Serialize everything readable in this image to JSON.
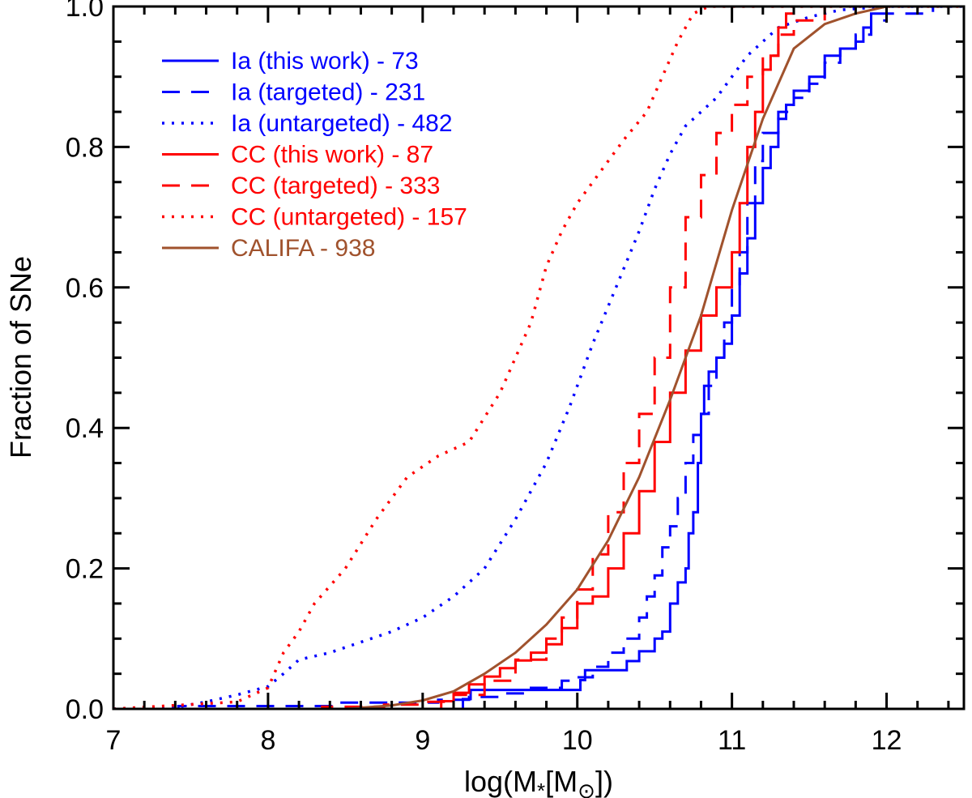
{
  "chart_data": {
    "type": "line",
    "title": "",
    "xlabel": "log(M",
    "xlabel_sub": "*",
    "xlabel_mid": "[M",
    "xlabel_sun": "⊙",
    "xlabel_end": "])",
    "ylabel": "Fraction of SNe",
    "xlim": [
      7,
      12.5
    ],
    "ylim": [
      0,
      1
    ],
    "xticks": [
      "7",
      "8",
      "9",
      "10",
      "11",
      "12"
    ],
    "yticks": [
      "0.0",
      "0.2",
      "0.4",
      "0.6",
      "0.8",
      "1.0"
    ],
    "grid": false,
    "legend_position": "top-left",
    "series": [
      {
        "name": "Ia (this work) - 73",
        "color": "#0000ff",
        "dash": "solid",
        "step": true,
        "points": [
          [
            7.0,
            0.0
          ],
          [
            9.25,
            0.0
          ],
          [
            9.26,
            0.014
          ],
          [
            9.3,
            0.014
          ],
          [
            9.31,
            0.027
          ],
          [
            10.0,
            0.027
          ],
          [
            10.02,
            0.041
          ],
          [
            10.05,
            0.055
          ],
          [
            10.3,
            0.055
          ],
          [
            10.32,
            0.068
          ],
          [
            10.4,
            0.082
          ],
          [
            10.5,
            0.1
          ],
          [
            10.55,
            0.11
          ],
          [
            10.6,
            0.15
          ],
          [
            10.65,
            0.18
          ],
          [
            10.7,
            0.2
          ],
          [
            10.72,
            0.25
          ],
          [
            10.75,
            0.28
          ],
          [
            10.78,
            0.35
          ],
          [
            10.8,
            0.42
          ],
          [
            10.82,
            0.46
          ],
          [
            10.85,
            0.48
          ],
          [
            10.9,
            0.5
          ],
          [
            10.95,
            0.52
          ],
          [
            11.0,
            0.56
          ],
          [
            11.05,
            0.62
          ],
          [
            11.1,
            0.67
          ],
          [
            11.15,
            0.72
          ],
          [
            11.2,
            0.77
          ],
          [
            11.25,
            0.8
          ],
          [
            11.3,
            0.84
          ],
          [
            11.35,
            0.86
          ],
          [
            11.4,
            0.88
          ],
          [
            11.5,
            0.9
          ],
          [
            11.6,
            0.93
          ],
          [
            11.7,
            0.94
          ],
          [
            11.8,
            0.95
          ],
          [
            11.85,
            0.97
          ],
          [
            11.9,
            0.99
          ],
          [
            12.0,
            1.0
          ],
          [
            12.5,
            1.0
          ]
        ]
      },
      {
        "name": "Ia (targeted) - 231",
        "color": "#0000ff",
        "dash": "long",
        "step": true,
        "points": [
          [
            7.0,
            0.0
          ],
          [
            7.4,
            0.0
          ],
          [
            7.42,
            0.004
          ],
          [
            8.4,
            0.004
          ],
          [
            8.45,
            0.009
          ],
          [
            9.0,
            0.009
          ],
          [
            9.1,
            0.013
          ],
          [
            9.3,
            0.017
          ],
          [
            9.5,
            0.022
          ],
          [
            9.7,
            0.03
          ],
          [
            9.9,
            0.04
          ],
          [
            10.0,
            0.045
          ],
          [
            10.1,
            0.06
          ],
          [
            10.2,
            0.08
          ],
          [
            10.3,
            0.1
          ],
          [
            10.4,
            0.13
          ],
          [
            10.45,
            0.16
          ],
          [
            10.5,
            0.19
          ],
          [
            10.55,
            0.23
          ],
          [
            10.6,
            0.26
          ],
          [
            10.65,
            0.3
          ],
          [
            10.7,
            0.35
          ],
          [
            10.75,
            0.39
          ],
          [
            10.8,
            0.42
          ],
          [
            10.85,
            0.46
          ],
          [
            10.9,
            0.5
          ],
          [
            10.95,
            0.55
          ],
          [
            11.0,
            0.6
          ],
          [
            11.05,
            0.65
          ],
          [
            11.1,
            0.72
          ],
          [
            11.15,
            0.78
          ],
          [
            11.2,
            0.82
          ],
          [
            11.3,
            0.85
          ],
          [
            11.4,
            0.87
          ],
          [
            11.5,
            0.89
          ],
          [
            11.6,
            0.92
          ],
          [
            11.7,
            0.94
          ],
          [
            11.8,
            0.96
          ],
          [
            11.9,
            0.98
          ],
          [
            12.0,
            0.99
          ],
          [
            12.3,
            1.0
          ],
          [
            12.5,
            1.0
          ]
        ]
      },
      {
        "name": "Ia (untargeted) - 482",
        "color": "#0000ff",
        "dash": "dotted",
        "step": false,
        "points": [
          [
            7.0,
            0.0
          ],
          [
            7.4,
            0.002
          ],
          [
            7.6,
            0.01
          ],
          [
            7.8,
            0.02
          ],
          [
            8.0,
            0.032
          ],
          [
            8.1,
            0.05
          ],
          [
            8.2,
            0.07
          ],
          [
            8.4,
            0.08
          ],
          [
            8.6,
            0.095
          ],
          [
            8.8,
            0.11
          ],
          [
            9.0,
            0.13
          ],
          [
            9.2,
            0.16
          ],
          [
            9.4,
            0.2
          ],
          [
            9.6,
            0.27
          ],
          [
            9.8,
            0.35
          ],
          [
            9.95,
            0.43
          ],
          [
            10.1,
            0.52
          ],
          [
            10.25,
            0.6
          ],
          [
            10.4,
            0.68
          ],
          [
            10.5,
            0.74
          ],
          [
            10.6,
            0.79
          ],
          [
            10.7,
            0.83
          ],
          [
            10.8,
            0.85
          ],
          [
            10.9,
            0.87
          ],
          [
            11.0,
            0.9
          ],
          [
            11.1,
            0.93
          ],
          [
            11.2,
            0.95
          ],
          [
            11.3,
            0.97
          ],
          [
            11.5,
            0.985
          ],
          [
            11.7,
            0.995
          ],
          [
            12.0,
            1.0
          ],
          [
            12.5,
            1.0
          ]
        ]
      },
      {
        "name": "CC (this work) - 87",
        "color": "#ff0000",
        "dash": "solid",
        "step": true,
        "points": [
          [
            7.0,
            0.0
          ],
          [
            9.1,
            0.0
          ],
          [
            9.12,
            0.011
          ],
          [
            9.2,
            0.023
          ],
          [
            9.3,
            0.035
          ],
          [
            9.4,
            0.046
          ],
          [
            9.5,
            0.058
          ],
          [
            9.6,
            0.069
          ],
          [
            9.7,
            0.08
          ],
          [
            9.8,
            0.092
          ],
          [
            9.9,
            0.115
          ],
          [
            10.0,
            0.15
          ],
          [
            10.1,
            0.16
          ],
          [
            10.2,
            0.2
          ],
          [
            10.3,
            0.25
          ],
          [
            10.4,
            0.31
          ],
          [
            10.5,
            0.38
          ],
          [
            10.6,
            0.45
          ],
          [
            10.7,
            0.51
          ],
          [
            10.8,
            0.56
          ],
          [
            10.9,
            0.6
          ],
          [
            11.0,
            0.65
          ],
          [
            11.05,
            0.72
          ],
          [
            11.1,
            0.8
          ],
          [
            11.15,
            0.85
          ],
          [
            11.2,
            0.91
          ],
          [
            11.25,
            0.93
          ],
          [
            11.3,
            0.97
          ],
          [
            11.35,
            0.99
          ],
          [
            11.4,
            1.0
          ],
          [
            12.5,
            1.0
          ]
        ]
      },
      {
        "name": "CC (targeted) - 333",
        "color": "#ff0000",
        "dash": "long",
        "step": true,
        "points": [
          [
            7.0,
            0.0
          ],
          [
            8.3,
            0.0
          ],
          [
            8.35,
            0.003
          ],
          [
            8.7,
            0.003
          ],
          [
            8.75,
            0.006
          ],
          [
            9.0,
            0.01
          ],
          [
            9.2,
            0.02
          ],
          [
            9.4,
            0.04
          ],
          [
            9.6,
            0.07
          ],
          [
            9.8,
            0.1
          ],
          [
            9.9,
            0.13
          ],
          [
            10.0,
            0.17
          ],
          [
            10.1,
            0.22
          ],
          [
            10.2,
            0.28
          ],
          [
            10.3,
            0.35
          ],
          [
            10.4,
            0.42
          ],
          [
            10.5,
            0.5
          ],
          [
            10.6,
            0.6
          ],
          [
            10.7,
            0.7
          ],
          [
            10.8,
            0.76
          ],
          [
            10.9,
            0.82
          ],
          [
            11.0,
            0.86
          ],
          [
            11.1,
            0.9
          ],
          [
            11.2,
            0.93
          ],
          [
            11.3,
            0.96
          ],
          [
            11.4,
            0.98
          ],
          [
            11.6,
            1.0
          ],
          [
            12.5,
            1.0
          ]
        ]
      },
      {
        "name": "CC (untargeted) - 157",
        "color": "#ff0000",
        "dash": "dotted",
        "step": false,
        "points": [
          [
            7.0,
            0.0
          ],
          [
            7.8,
            0.01
          ],
          [
            8.0,
            0.03
          ],
          [
            8.1,
            0.08
          ],
          [
            8.2,
            0.11
          ],
          [
            8.3,
            0.15
          ],
          [
            8.5,
            0.2
          ],
          [
            8.7,
            0.27
          ],
          [
            8.9,
            0.33
          ],
          [
            9.1,
            0.36
          ],
          [
            9.3,
            0.38
          ],
          [
            9.5,
            0.45
          ],
          [
            9.7,
            0.55
          ],
          [
            9.8,
            0.63
          ],
          [
            9.9,
            0.68
          ],
          [
            10.0,
            0.72
          ],
          [
            10.2,
            0.78
          ],
          [
            10.3,
            0.81
          ],
          [
            10.45,
            0.85
          ],
          [
            10.55,
            0.9
          ],
          [
            10.65,
            0.95
          ],
          [
            10.75,
            0.99
          ],
          [
            10.85,
            1.0
          ],
          [
            12.5,
            1.0
          ]
        ]
      },
      {
        "name": "CALIFA - 938",
        "color": "#a0522d",
        "dash": "solid",
        "step": false,
        "points": [
          [
            7.0,
            0.0
          ],
          [
            8.5,
            0.0
          ],
          [
            8.8,
            0.005
          ],
          [
            9.0,
            0.012
          ],
          [
            9.2,
            0.025
          ],
          [
            9.4,
            0.05
          ],
          [
            9.6,
            0.08
          ],
          [
            9.8,
            0.12
          ],
          [
            10.0,
            0.17
          ],
          [
            10.2,
            0.24
          ],
          [
            10.4,
            0.33
          ],
          [
            10.6,
            0.44
          ],
          [
            10.8,
            0.56
          ],
          [
            11.0,
            0.71
          ],
          [
            11.2,
            0.84
          ],
          [
            11.4,
            0.94
          ],
          [
            11.6,
            0.975
          ],
          [
            11.8,
            0.99
          ],
          [
            12.0,
            1.0
          ],
          [
            12.5,
            1.0
          ]
        ]
      }
    ]
  }
}
